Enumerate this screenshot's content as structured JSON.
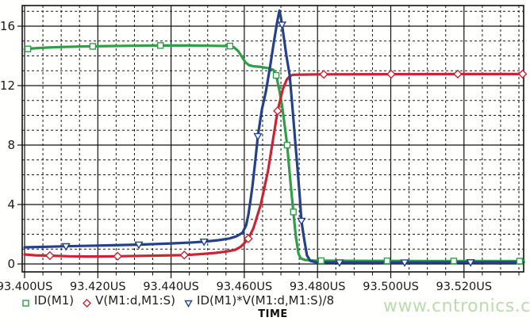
{
  "chart_data": {
    "type": "line",
    "title": "",
    "xlabel": "TIME",
    "x_unit": "US",
    "x_range": [
      93.4,
      93.5363
    ],
    "y_range": [
      -0.55,
      17.4
    ],
    "grid": {
      "major_style": "solid",
      "minor_style": "dashed",
      "color": "#1a1a1a"
    },
    "x_major_ticks": [
      {
        "t": 93.4,
        "label": "93.400US"
      },
      {
        "t": 93.42,
        "label": "93.420US"
      },
      {
        "t": 93.44,
        "label": "93.440US"
      },
      {
        "t": 93.46,
        "label": "93.460US"
      },
      {
        "t": 93.48,
        "label": "93.480US"
      },
      {
        "t": 93.5,
        "label": "93.500US"
      },
      {
        "t": 93.52,
        "label": "93.520US"
      }
    ],
    "x_minor_step": 0.005,
    "y_major_ticks": [
      {
        "v": 0,
        "label": "0"
      },
      {
        "v": 4,
        "label": "4"
      },
      {
        "v": 8,
        "label": "8"
      },
      {
        "v": 12,
        "label": "12"
      },
      {
        "v": 16,
        "label": "16"
      }
    ],
    "y_minor_step": 1,
    "legend_position": "bottom-left",
    "series": [
      {
        "name": "ID(M1)",
        "color": "#2f9e47",
        "marker": "square",
        "points": [
          [
            93.4,
            14.45
          ],
          [
            93.402,
            14.5
          ],
          [
            93.406,
            14.56
          ],
          [
            93.41,
            14.6
          ],
          [
            93.415,
            14.63
          ],
          [
            93.42,
            14.65
          ],
          [
            93.428,
            14.68
          ],
          [
            93.437,
            14.7
          ],
          [
            93.445,
            14.7
          ],
          [
            93.452,
            14.68
          ],
          [
            93.4561,
            14.66
          ],
          [
            93.4572,
            14.57
          ],
          [
            93.4583,
            14.33
          ],
          [
            93.4593,
            13.95
          ],
          [
            93.4603,
            13.57
          ],
          [
            93.4613,
            13.37
          ],
          [
            93.4625,
            13.3
          ],
          [
            93.4645,
            13.26
          ],
          [
            93.4665,
            13.18
          ],
          [
            93.468,
            13.05
          ],
          [
            93.4687,
            12.69
          ],
          [
            93.4695,
            11.8
          ],
          [
            93.4703,
            10.7
          ],
          [
            93.4711,
            9.2
          ],
          [
            93.4717,
            8.0
          ],
          [
            93.4725,
            5.8
          ],
          [
            93.4734,
            3.5
          ],
          [
            93.4741,
            1.8
          ],
          [
            93.4748,
            0.7
          ],
          [
            93.4754,
            0.38
          ],
          [
            93.4765,
            0.27
          ],
          [
            93.479,
            0.23
          ],
          [
            93.49,
            0.21
          ],
          [
            93.51,
            0.2
          ],
          [
            93.5363,
            0.19
          ]
        ],
        "marker_points": [
          [
            93.4009,
            14.47
          ],
          [
            93.4186,
            14.64
          ],
          [
            93.4371,
            14.7
          ],
          [
            93.4561,
            14.66
          ],
          [
            93.4687,
            12.69
          ],
          [
            93.4717,
            8.0
          ],
          [
            93.4734,
            3.5
          ],
          [
            93.481,
            0.22
          ],
          [
            93.499,
            0.21
          ],
          [
            93.5172,
            0.2
          ],
          [
            93.5352,
            0.19
          ]
        ]
      },
      {
        "name": "V(M1:d,M1:S)",
        "color": "#cb2434",
        "marker": "diamond",
        "points": [
          [
            93.4,
            0.64
          ],
          [
            93.403,
            0.58
          ],
          [
            93.4069,
            0.56
          ],
          [
            93.412,
            0.52
          ],
          [
            93.418,
            0.5
          ],
          [
            93.4254,
            0.52
          ],
          [
            93.433,
            0.55
          ],
          [
            93.44,
            0.58
          ],
          [
            93.4436,
            0.6
          ],
          [
            93.448,
            0.66
          ],
          [
            93.452,
            0.74
          ],
          [
            93.455,
            0.83
          ],
          [
            93.4575,
            0.95
          ],
          [
            93.459,
            1.15
          ],
          [
            93.46,
            1.4
          ],
          [
            93.4611,
            1.7
          ],
          [
            93.4625,
            2.4
          ],
          [
            93.4645,
            4.0
          ],
          [
            93.4665,
            6.3
          ],
          [
            93.468,
            8.6
          ],
          [
            93.4691,
            10.3
          ],
          [
            93.4705,
            11.75
          ],
          [
            93.4716,
            12.4
          ],
          [
            93.4725,
            12.65
          ],
          [
            93.4733,
            12.73
          ],
          [
            93.48,
            12.76
          ],
          [
            93.5,
            12.77
          ],
          [
            93.52,
            12.78
          ],
          [
            93.5363,
            12.78
          ]
        ],
        "marker_points": [
          [
            93.4069,
            0.56
          ],
          [
            93.4254,
            0.52
          ],
          [
            93.4436,
            0.6
          ],
          [
            93.4611,
            1.7
          ],
          [
            93.4691,
            10.3
          ],
          [
            93.4817,
            12.76
          ],
          [
            93.5001,
            12.77
          ],
          [
            93.5183,
            12.78
          ],
          [
            93.536,
            12.78
          ]
        ]
      },
      {
        "name": "ID(M1)*V(M1:d,M1:S)/8",
        "color": "#25418b",
        "marker": "triangle-down",
        "points": [
          [
            93.4,
            1.12
          ],
          [
            93.406,
            1.16
          ],
          [
            93.4113,
            1.19
          ],
          [
            93.42,
            1.24
          ],
          [
            93.4312,
            1.3
          ],
          [
            93.44,
            1.38
          ],
          [
            93.446,
            1.45
          ],
          [
            93.449,
            1.5
          ],
          [
            93.453,
            1.6
          ],
          [
            93.456,
            1.72
          ],
          [
            93.458,
            1.88
          ],
          [
            93.4595,
            2.1
          ],
          [
            93.4605,
            2.6
          ],
          [
            93.4611,
            3.3
          ],
          [
            93.4617,
            4.27
          ],
          [
            93.4622,
            5.2
          ],
          [
            93.463,
            6.9
          ],
          [
            93.4637,
            8.6
          ],
          [
            93.4648,
            10.4
          ],
          [
            93.4659,
            11.6
          ],
          [
            93.467,
            13.2
          ],
          [
            93.468,
            14.8
          ],
          [
            93.469,
            16.3
          ],
          [
            93.4696,
            17.05
          ],
          [
            93.47,
            16.6
          ],
          [
            93.4706,
            15.6
          ],
          [
            93.4715,
            14.0
          ],
          [
            93.4724,
            12.7
          ],
          [
            93.4732,
            10.4
          ],
          [
            93.4739,
            8.3
          ],
          [
            93.4746,
            6.2
          ],
          [
            93.4752,
            4.4
          ],
          [
            93.4756,
            2.9
          ],
          [
            93.4763,
            1.76
          ],
          [
            93.4771,
            0.59
          ],
          [
            93.478,
            0.21
          ],
          [
            93.4795,
            0.12
          ],
          [
            93.49,
            0.1
          ],
          [
            93.51,
            0.1
          ],
          [
            93.525,
            0.12
          ],
          [
            93.5363,
            0.12
          ]
        ],
        "marker_points": [
          [
            93.4113,
            1.19
          ],
          [
            93.4312,
            1.3
          ],
          [
            93.449,
            1.5
          ],
          [
            93.4637,
            8.6
          ],
          [
            93.4703,
            16.1
          ],
          [
            93.4756,
            2.9
          ],
          [
            93.486,
            0.1
          ],
          [
            93.5038,
            0.1
          ],
          [
            93.5218,
            0.11
          ]
        ]
      }
    ]
  },
  "legend": {
    "items": [
      {
        "label": "ID(M1)"
      },
      {
        "label": "V(M1:d,M1:S)"
      },
      {
        "label": "ID(M1)*V(M1:d,M1:S)/8"
      }
    ]
  },
  "axis": {
    "x_label": "TIME"
  },
  "watermark": {
    "text": "www.cntronics.com",
    "color": "#b9ddac"
  }
}
